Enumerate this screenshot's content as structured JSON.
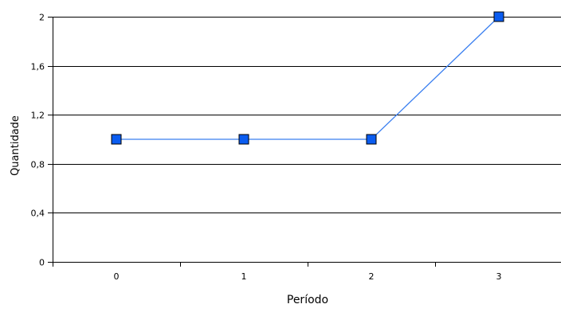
{
  "chart_data": {
    "type": "line",
    "title": "",
    "xlabel": "Período",
    "ylabel": "Quantidade",
    "x": [
      0,
      1,
      2,
      3
    ],
    "x_tick_labels": [
      "0",
      "1",
      "2",
      "3"
    ],
    "y_ticks": [
      0,
      0.4,
      0.8,
      1.2,
      1.6,
      2
    ],
    "y_tick_labels": [
      "0",
      "0,4",
      "0,8",
      "1,2",
      "1,6",
      "2"
    ],
    "xlim": [
      -0.5,
      3.5
    ],
    "ylim": [
      0,
      2
    ],
    "grid": true,
    "series": [
      {
        "values": [
          1,
          1,
          1,
          2
        ],
        "line_color": "#3a7ff0",
        "marker_color": "#0a5cf0",
        "marker_edge_color": "#000000"
      }
    ]
  }
}
